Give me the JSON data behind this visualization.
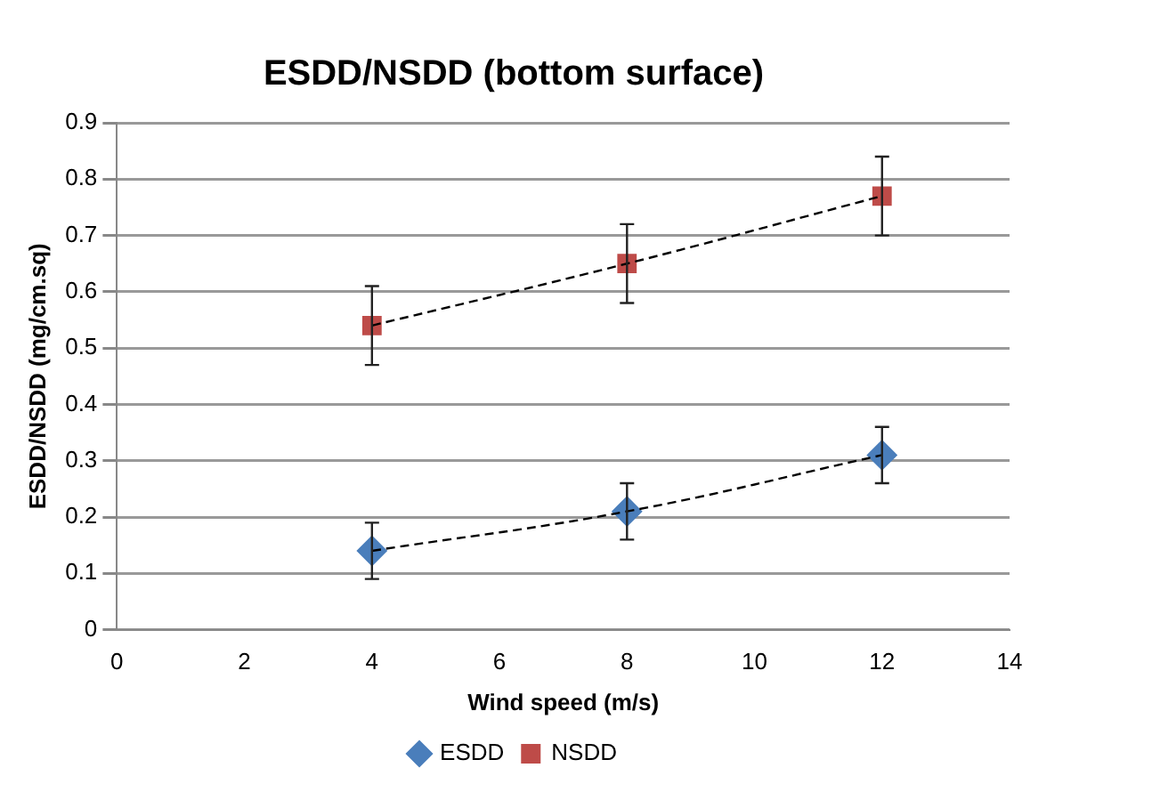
{
  "chart_data": {
    "type": "scatter",
    "title": "ESDD/NSDD (bottom surface)",
    "xlabel": "Wind speed (m/s)",
    "ylabel": "ESDD/NSDD (mg/cm.sq)",
    "x": [
      4,
      8,
      12
    ],
    "series": [
      {
        "name": "ESDD",
        "color": "#4a7ebb",
        "marker": "diamond",
        "values": [
          0.14,
          0.21,
          0.31
        ],
        "errors": [
          0.05,
          0.05,
          0.05
        ]
      },
      {
        "name": "NSDD",
        "color": "#be4b48",
        "marker": "square",
        "values": [
          0.54,
          0.65,
          0.77
        ],
        "errors": [
          0.07,
          0.07,
          0.07
        ]
      },
      {
        "type": "line",
        "color": "#000000",
        "line_style": "dashed",
        "marker": "none",
        "x": [
          4,
          8,
          12
        ],
        "values": [
          0.14,
          0.21,
          0.31
        ]
      },
      {
        "type": "line",
        "color": "#000000",
        "line_style": "dashed",
        "marker": "none",
        "x": [
          4,
          8,
          12
        ],
        "values": [
          0.54,
          0.65,
          0.77
        ]
      }
    ],
    "xlim": [
      0,
      14
    ],
    "xticks": [
      0,
      2,
      4,
      6,
      8,
      10,
      12,
      14
    ],
    "ylim": [
      0,
      0.9
    ],
    "yticks": [
      0,
      0.1,
      0.2,
      0.3,
      0.4,
      0.5,
      0.6,
      0.7,
      0.8,
      0.9
    ],
    "grid": "y",
    "legend": "bottom"
  }
}
